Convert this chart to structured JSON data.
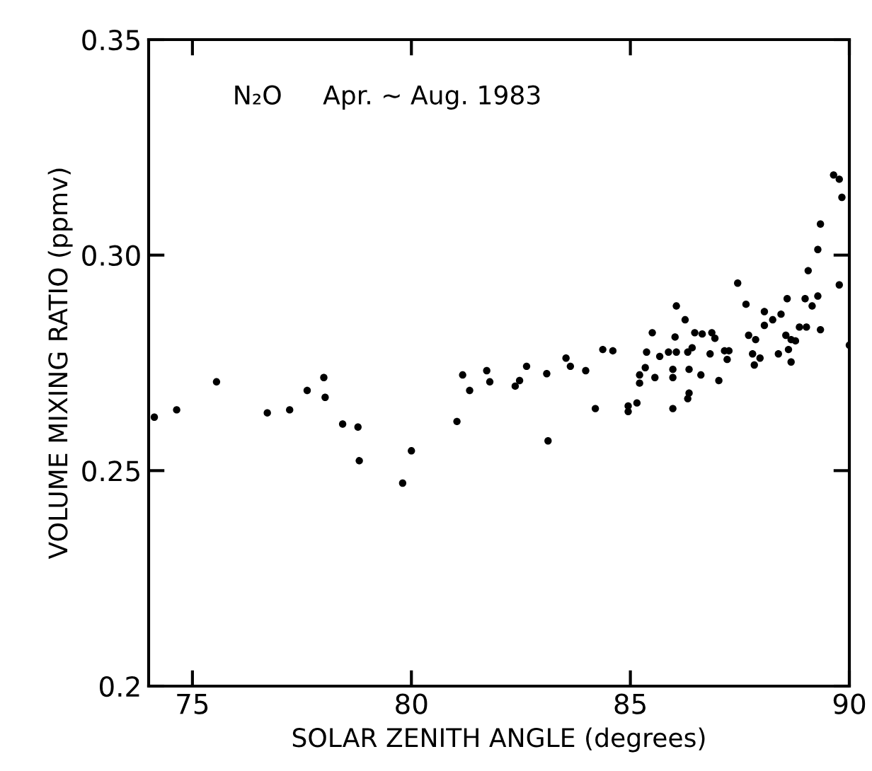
{
  "chart_data": {
    "type": "scatter",
    "xlabel": "SOLAR ZENITH ANGLE (degrees)",
    "ylabel": "VOLUME MIXING RATIO (ppmv)",
    "annotations": [
      "N₂O     Apr. ~ Aug. 1983"
    ],
    "xlim": [
      74,
      90
    ],
    "xticks": [
      75,
      80,
      85,
      90
    ],
    "ylim": [
      0.2,
      0.35
    ],
    "yticks": [
      {
        "value": 0.2,
        "label": "0.2"
      },
      0.25,
      {
        "value": 0.3,
        "label": "0.30"
      },
      0.35
    ],
    "grid": false,
    "marker": "circle",
    "series": [
      {
        "color": "#000000",
        "x": [
          74.13,
          74.64,
          75.55,
          76.71,
          77.22,
          77.62,
          78.0,
          78.03,
          78.43,
          78.78,
          78.81,
          79.8,
          80.0,
          81.04,
          81.17,
          81.33,
          81.72,
          81.79,
          82.37,
          82.47,
          82.63,
          83.09,
          83.12,
          83.53,
          83.63,
          83.98,
          84.2,
          84.37,
          84.6,
          84.95,
          84.95,
          85.15,
          85.21,
          85.21,
          85.34,
          85.37,
          85.5,
          85.56,
          85.67,
          85.87,
          85.97,
          85.97,
          85.97,
          86.02,
          86.05,
          86.05,
          86.25,
          86.31,
          86.41,
          86.34,
          86.34,
          86.31,
          86.47,
          86.64,
          86.61,
          86.82,
          86.86,
          86.93,
          87.02,
          87.15,
          87.21,
          87.25,
          87.45,
          87.64,
          87.7,
          87.86,
          87.79,
          87.83,
          87.96,
          88.06,
          88.06,
          88.25,
          88.38,
          88.44,
          88.58,
          88.55,
          88.61,
          88.67,
          88.67,
          88.77,
          88.86,
          89.02,
          88.99,
          89.06,
          89.15,
          89.28,
          89.34,
          89.28,
          89.34,
          89.64,
          89.77,
          89.83,
          89.77,
          90.0
        ],
        "values": [
          0.2624,
          0.2641,
          0.2706,
          0.2634,
          0.2641,
          0.2686,
          0.2716,
          0.267,
          0.2608,
          0.2601,
          0.2523,
          0.2471,
          0.2546,
          0.2614,
          0.2722,
          0.2686,
          0.2732,
          0.2706,
          0.2696,
          0.2709,
          0.2742,
          0.2725,
          0.2569,
          0.2761,
          0.2742,
          0.2732,
          0.2644,
          0.2781,
          0.2778,
          0.265,
          0.2637,
          0.2657,
          0.2722,
          0.2703,
          0.2739,
          0.2775,
          0.282,
          0.2716,
          0.2765,
          0.2775,
          0.2735,
          0.2716,
          0.2644,
          0.281,
          0.2882,
          0.2775,
          0.285,
          0.2775,
          0.2785,
          0.2735,
          0.268,
          0.2667,
          0.282,
          0.2817,
          0.2722,
          0.2771,
          0.282,
          0.2807,
          0.2709,
          0.2778,
          0.2758,
          0.2778,
          0.2935,
          0.2886,
          0.2814,
          0.2804,
          0.2771,
          0.2745,
          0.2761,
          0.2869,
          0.2837,
          0.285,
          0.2771,
          0.2863,
          0.2899,
          0.2814,
          0.2781,
          0.2752,
          0.2804,
          0.2801,
          0.2833,
          0.2833,
          0.2899,
          0.2964,
          0.2882,
          0.2905,
          0.2827,
          0.3013,
          0.3072,
          0.3186,
          0.3176,
          0.3134,
          0.2931,
          0.2791
        ]
      }
    ]
  }
}
